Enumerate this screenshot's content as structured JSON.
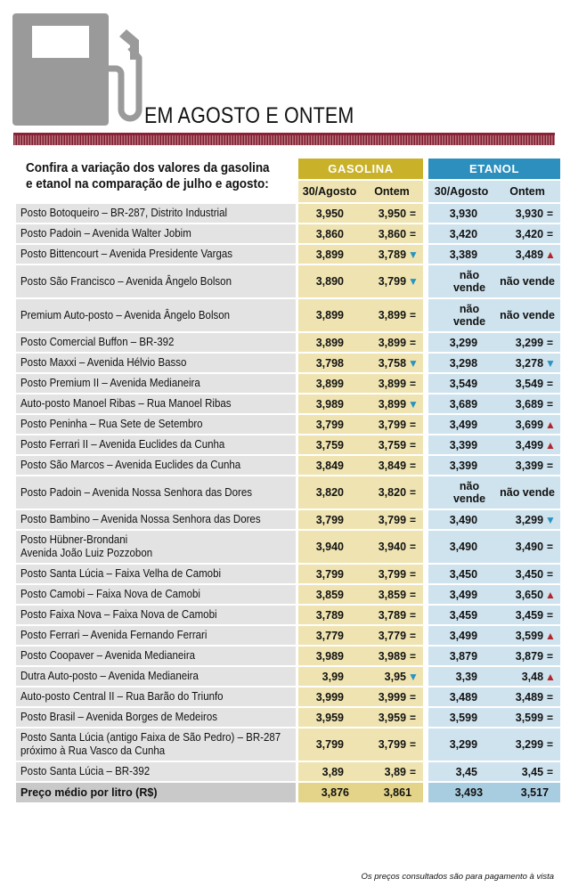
{
  "title": "EM AGOSTO E ONTEM",
  "intro": "Confira a variação dos valores da gasolina e etanol na comparação de julho e agosto:",
  "groups": {
    "gasolina": "GASOLINA",
    "etanol": "ETANOL"
  },
  "columns": {
    "g1": "30/Agosto",
    "g2": "Ontem",
    "e1": "30/Agosto",
    "e2": "Ontem"
  },
  "colors": {
    "gasolina_header": "#c9b22a",
    "etanol_header": "#2c8fbd",
    "band": "#8b2233",
    "up": "#b3242c",
    "down": "#2b93c0"
  },
  "icons": {
    "pump": "fuel-pump-icon",
    "up": "triangle-up",
    "down": "triangle-down",
    "equal": "equals"
  },
  "rows": [
    {
      "name": [
        "Posto Botoqueiro – BR-287, Distrito Industrial"
      ],
      "g1": "3,950",
      "g2": "3,950",
      "g2s": "eq",
      "e1": "3,930",
      "e2": "3,930",
      "e2s": "eq"
    },
    {
      "name": [
        "Posto Padoin – Avenida Walter Jobim"
      ],
      "g1": "3,860",
      "g2": "3,860",
      "g2s": "eq",
      "e1": "3,420",
      "e2": "3,420",
      "e2s": "eq"
    },
    {
      "name": [
        "Posto Bittencourt – Avenida Presidente Vargas"
      ],
      "g1": "3,899",
      "g2": "3,789",
      "g2s": "down",
      "e1": "3,389",
      "e2": "3,489",
      "e2s": "up"
    },
    {
      "name": [
        "Posto São Francisco – Avenida Ângelo Bolson"
      ],
      "g1": "3,890",
      "g2": "3,799",
      "g2s": "down",
      "e1": "não vende",
      "e2": "não vende",
      "e2s": ""
    },
    {
      "name": [
        "Premium Auto-posto – Avenida Ângelo Bolson"
      ],
      "g1": "3,899",
      "g2": "3,899",
      "g2s": "eq",
      "e1": "não vende",
      "e2": "não vende",
      "e2s": ""
    },
    {
      "name": [
        "Posto Comercial Buffon – BR-392"
      ],
      "g1": "3,899",
      "g2": "3,899",
      "g2s": "eq",
      "e1": "3,299",
      "e2": "3,299",
      "e2s": "eq"
    },
    {
      "name": [
        "Posto Maxxi – Avenida Hélvio Basso"
      ],
      "g1": "3,798",
      "g2": "3,758",
      "g2s": "down",
      "e1": "3,298",
      "e2": "3,278",
      "e2s": "down"
    },
    {
      "name": [
        "Posto Premium II – Avenida Medianeira"
      ],
      "g1": "3,899",
      "g2": "3,899",
      "g2s": "eq",
      "e1": "3,549",
      "e2": "3,549",
      "e2s": "eq"
    },
    {
      "name": [
        "Auto-posto Manoel Ribas – Rua Manoel Ribas"
      ],
      "g1": "3,989",
      "g2": "3,899",
      "g2s": "down",
      "e1": "3,689",
      "e2": "3,689",
      "e2s": "eq"
    },
    {
      "name": [
        "Posto Peninha – Rua Sete de Setembro"
      ],
      "g1": "3,799",
      "g2": "3,799",
      "g2s": "eq",
      "e1": "3,499",
      "e2": "3,699",
      "e2s": "up"
    },
    {
      "name": [
        "Posto Ferrari II – Avenida Euclides da Cunha"
      ],
      "g1": "3,759",
      "g2": "3,759",
      "g2s": "eq",
      "e1": "3,399",
      "e2": "3,499",
      "e2s": "up"
    },
    {
      "name": [
        "Posto São Marcos – Avenida Euclides da Cunha"
      ],
      "g1": "3,849",
      "g2": "3,849",
      "g2s": "eq",
      "e1": "3,399",
      "e2": "3,399",
      "e2s": "eq"
    },
    {
      "name": [
        "Posto Padoin – Avenida Nossa Senhora das Dores"
      ],
      "g1": "3,820",
      "g2": "3,820",
      "g2s": "eq",
      "e1": "não vende",
      "e2": "não vende",
      "e2s": ""
    },
    {
      "name": [
        "Posto Bambino – Avenida Nossa Senhora das Dores"
      ],
      "g1": "3,799",
      "g2": "3,799",
      "g2s": "eq",
      "e1": "3,490",
      "e2": "3,299",
      "e2s": "down"
    },
    {
      "name": [
        "Posto Hübner-Brondani",
        "Avenida João Luiz Pozzobon"
      ],
      "g1": "3,940",
      "g2": "3,940",
      "g2s": "eq",
      "e1": "3,490",
      "e2": "3,490",
      "e2s": "eq"
    },
    {
      "name": [
        "Posto Santa Lúcia – Faixa Velha de Camobi"
      ],
      "g1": "3,799",
      "g2": "3,799",
      "g2s": "eq",
      "e1": "3,450",
      "e2": "3,450",
      "e2s": "eq"
    },
    {
      "name": [
        "Posto Camobi – Faixa Nova de Camobi"
      ],
      "g1": "3,859",
      "g2": "3,859",
      "g2s": "eq",
      "e1": "3,499",
      "e2": "3,650",
      "e2s": "up"
    },
    {
      "name": [
        "Posto Faixa Nova – Faixa Nova de Camobi"
      ],
      "g1": "3,789",
      "g2": "3,789",
      "g2s": "eq",
      "e1": "3,459",
      "e2": "3,459",
      "e2s": "eq"
    },
    {
      "name": [
        "Posto Ferrari – Avenida Fernando Ferrari"
      ],
      "g1": "3,779",
      "g2": "3,779",
      "g2s": "eq",
      "e1": "3,499",
      "e2": "3,599",
      "e2s": "up"
    },
    {
      "name": [
        "Posto Coopaver – Avenida Medianeira"
      ],
      "g1": "3,989",
      "g2": "3,989",
      "g2s": "eq",
      "e1": "3,879",
      "e2": "3,879",
      "e2s": "eq"
    },
    {
      "name": [
        "Dutra Auto-posto – Avenida Medianeira"
      ],
      "g1": "3,99",
      "g2": "3,95",
      "g2s": "down",
      "e1": "3,39",
      "e2": "3,48",
      "e2s": "up"
    },
    {
      "name": [
        "Auto-posto Central II – Rua Barão do Triunfo"
      ],
      "g1": "3,999",
      "g2": "3,999",
      "g2s": "eq",
      "e1": "3,489",
      "e2": "3,489",
      "e2s": "eq"
    },
    {
      "name": [
        "Posto Brasil – Avenida Borges de Medeiros"
      ],
      "g1": "3,959",
      "g2": "3,959",
      "g2s": "eq",
      "e1": "3,599",
      "e2": "3,599",
      "e2s": "eq"
    },
    {
      "name": [
        "Posto Santa Lúcia (antigo Faixa de São Pedro) – BR-287",
        "próximo à Rua Vasco da Cunha"
      ],
      "g1": "3,799",
      "g2": "3,799",
      "g2s": "eq",
      "e1": "3,299",
      "e2": "3,299",
      "e2s": "eq"
    },
    {
      "name": [
        "Posto Santa Lúcia – BR-392"
      ],
      "g1": "3,89",
      "g2": "3,89",
      "g2s": "eq",
      "e1": "3,45",
      "e2": "3,45",
      "e2s": "eq"
    }
  ],
  "total": {
    "label": "Preço médio por litro (R$)",
    "g1": "3,876",
    "g2": "3,861",
    "e1": "3,493",
    "e2": "3,517"
  },
  "footnote": "Os preços consultados são para pagamento à vista"
}
